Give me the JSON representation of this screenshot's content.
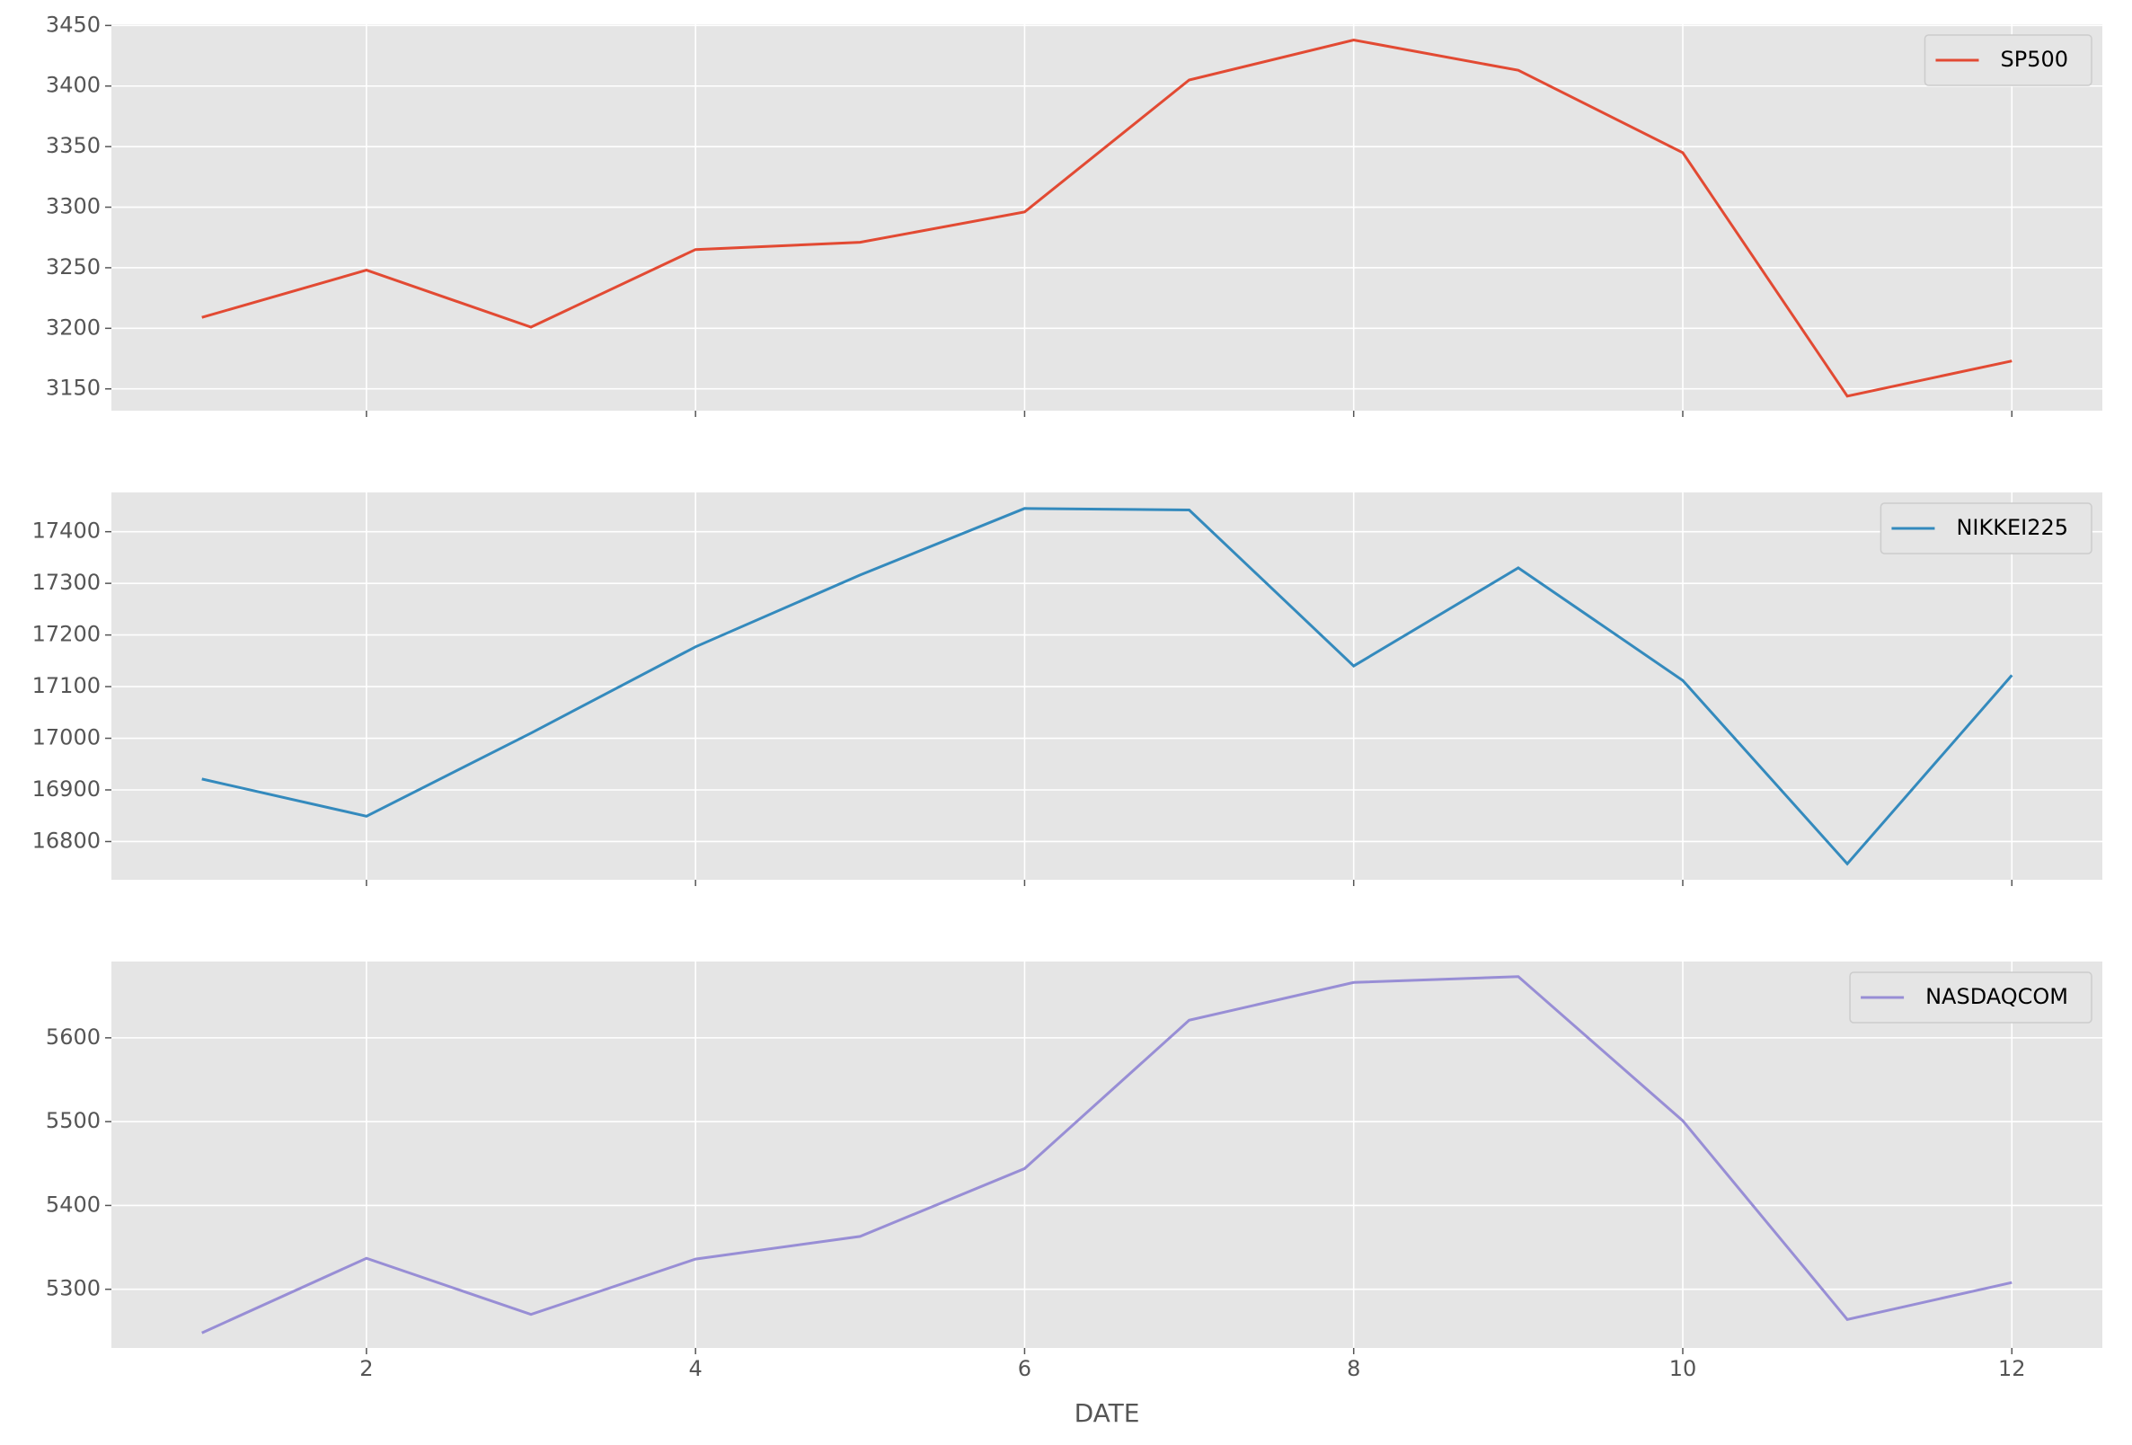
{
  "chart_data": [
    {
      "type": "line",
      "x": [
        1,
        2,
        3,
        4,
        5,
        6,
        7,
        8,
        9,
        10,
        11,
        12
      ],
      "series": [
        {
          "name": "SP500",
          "color": "#E24A33",
          "values": [
            3209,
            3248,
            3201,
            3265,
            3271,
            3296,
            3405,
            3438,
            3413,
            3345,
            3144,
            3173
          ]
        }
      ],
      "xlim": [
        0.45,
        12.55
      ],
      "xticks": [
        2,
        4,
        6,
        8,
        10,
        12
      ],
      "ylim": [
        3132,
        3451
      ],
      "yticks": [
        3150,
        3200,
        3250,
        3300,
        3350,
        3400,
        3450
      ],
      "grid": true,
      "legend": "upper right"
    },
    {
      "type": "line",
      "x": [
        1,
        2,
        3,
        4,
        5,
        6,
        7,
        8,
        9,
        10,
        11,
        12
      ],
      "series": [
        {
          "name": "NIKKEI225",
          "color": "#348ABD",
          "values": [
            16921,
            16849,
            17010,
            17177,
            17316,
            17445,
            17442,
            17140,
            17330,
            17112,
            16757,
            17122
          ]
        }
      ],
      "xlim": [
        0.45,
        12.55
      ],
      "xticks": [
        2,
        4,
        6,
        8,
        10,
        12
      ],
      "ylim": [
        16726,
        17476
      ],
      "yticks": [
        16800,
        16900,
        17000,
        17100,
        17200,
        17300,
        17400
      ],
      "grid": true,
      "legend": "upper right"
    },
    {
      "type": "line",
      "x": [
        1,
        2,
        3,
        4,
        5,
        6,
        7,
        8,
        9,
        10,
        11,
        12
      ],
      "series": [
        {
          "name": "NASDAQCOM",
          "color": "#988ED5",
          "values": [
            5248,
            5337,
            5270,
            5336,
            5363,
            5444,
            5621,
            5666,
            5673,
            5501,
            5264,
            5308
          ]
        }
      ],
      "xlim": [
        0.45,
        12.55
      ],
      "xticks": [
        2,
        4,
        6,
        8,
        10,
        12
      ],
      "ylim": [
        5230,
        5691
      ],
      "yticks": [
        5300,
        5400,
        5500,
        5600
      ],
      "x_label": "DATE",
      "grid": true,
      "legend": "upper right"
    }
  ]
}
